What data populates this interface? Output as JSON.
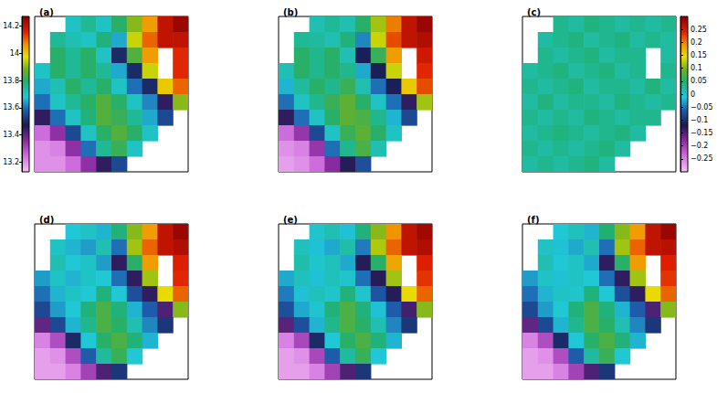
{
  "chart_data": [
    {
      "type": "heatmap",
      "title": "(a)",
      "tick_labels": false,
      "color_range": [
        13.13,
        14.27
      ],
      "colorbar_ticks": [
        13.2,
        13.4,
        13.6,
        13.8,
        14,
        14.2
      ],
      "cells": [
        [
          null,
          null,
          13.7,
          13.75,
          13.7,
          13.8,
          13.9,
          14.05,
          14.2,
          14.25
        ],
        [
          null,
          13.75,
          13.72,
          13.7,
          13.78,
          13.65,
          13.95,
          14.1,
          14.2,
          14.2
        ],
        [
          null,
          13.8,
          13.75,
          13.8,
          13.7,
          13.5,
          13.85,
          14.05,
          null,
          14.15
        ],
        [
          13.7,
          13.8,
          13.75,
          13.8,
          13.75,
          13.65,
          13.5,
          13.95,
          null,
          14.15
        ],
        [
          13.65,
          13.72,
          13.8,
          13.75,
          13.8,
          13.7,
          13.6,
          13.5,
          14.0,
          14.1
        ],
        [
          13.6,
          13.7,
          13.75,
          13.8,
          13.85,
          13.8,
          13.7,
          13.62,
          13.45,
          13.9
        ],
        [
          13.45,
          13.6,
          13.7,
          13.78,
          13.85,
          13.82,
          13.75,
          13.65,
          13.55,
          null
        ],
        [
          13.25,
          13.35,
          13.55,
          13.7,
          13.8,
          13.85,
          13.8,
          13.7,
          null,
          null
        ],
        [
          13.2,
          13.22,
          13.35,
          13.6,
          13.75,
          13.82,
          13.7,
          null,
          null,
          null
        ],
        [
          13.2,
          13.2,
          13.25,
          13.35,
          13.45,
          13.55,
          null,
          null,
          null,
          null
        ]
      ]
    },
    {
      "type": "heatmap",
      "title": "(b)",
      "tick_labels": false,
      "color_range": [
        13.13,
        14.27
      ],
      "cells": [
        [
          null,
          null,
          13.72,
          13.75,
          13.72,
          13.8,
          13.92,
          14.08,
          14.2,
          14.25
        ],
        [
          null,
          13.75,
          13.74,
          13.72,
          13.78,
          13.62,
          13.95,
          14.12,
          14.2,
          14.22
        ],
        [
          null,
          13.8,
          13.76,
          13.8,
          13.72,
          13.48,
          13.82,
          14.05,
          null,
          14.18
        ],
        [
          13.72,
          13.8,
          13.76,
          13.8,
          13.76,
          13.65,
          13.48,
          13.95,
          null,
          14.15
        ],
        [
          13.66,
          13.74,
          13.8,
          13.76,
          13.82,
          13.72,
          13.6,
          13.48,
          14.0,
          14.12
        ],
        [
          13.6,
          13.7,
          13.76,
          13.82,
          13.86,
          13.8,
          13.7,
          13.6,
          13.45,
          13.92
        ],
        [
          13.45,
          13.6,
          13.7,
          13.8,
          13.86,
          13.84,
          13.76,
          13.66,
          13.55,
          null
        ],
        [
          13.25,
          13.34,
          13.55,
          13.7,
          13.82,
          13.86,
          13.8,
          13.7,
          null,
          null
        ],
        [
          13.2,
          13.22,
          13.34,
          13.6,
          13.76,
          13.84,
          13.72,
          null,
          null,
          null
        ],
        [
          13.18,
          13.2,
          13.25,
          13.36,
          13.46,
          13.56,
          null,
          null,
          null,
          null
        ]
      ]
    },
    {
      "type": "heatmap",
      "title": "(c)",
      "tick_labels": false,
      "color_range": [
        -0.3,
        0.3
      ],
      "colorbar_ticks": [
        {
          "value": -0.25,
          "label": "−0.25"
        },
        {
          "value": -0.2,
          "label": "−0.2"
        },
        {
          "value": -0.15,
          "label": "−0.15"
        },
        {
          "value": -0.1,
          "label": "−0.1"
        },
        {
          "value": -0.05,
          "label": "−0.05"
        },
        0,
        0.05,
        0.1,
        0.15,
        0.2,
        0.25
      ],
      "cells": [
        [
          null,
          null,
          0.03,
          0.02,
          0.04,
          0.03,
          0.02,
          0.03,
          0.02,
          0.03
        ],
        [
          null,
          0.02,
          0.03,
          0.04,
          0.02,
          0.03,
          0.04,
          0.02,
          0.03,
          0.02
        ],
        [
          null,
          0.03,
          0.02,
          0.03,
          0.04,
          0.02,
          0.03,
          0.03,
          null,
          0.02
        ],
        [
          0.02,
          0.03,
          0.04,
          0.02,
          0.03,
          0.04,
          0.02,
          0.03,
          null,
          0.03
        ],
        [
          0.03,
          0.02,
          0.03,
          0.04,
          0.02,
          0.03,
          0.03,
          0.02,
          0.04,
          0.02
        ],
        [
          0.02,
          0.04,
          0.02,
          0.03,
          0.03,
          0.02,
          0.04,
          0.03,
          0.02,
          0.03
        ],
        [
          0.03,
          0.02,
          0.03,
          0.02,
          0.04,
          0.03,
          0.02,
          0.03,
          0.03,
          null
        ],
        [
          0.02,
          0.03,
          0.04,
          0.03,
          0.02,
          0.03,
          0.04,
          0.02,
          null,
          null
        ],
        [
          0.03,
          0.02,
          0.03,
          0.02,
          0.03,
          0.04,
          0.02,
          null,
          null,
          null
        ],
        [
          0.02,
          0.03,
          0.02,
          0.03,
          0.04,
          0.02,
          null,
          null,
          null,
          null
        ]
      ]
    },
    {
      "type": "heatmap",
      "title": "(d)",
      "tick_labels": false,
      "color_range": [
        13.13,
        14.27
      ],
      "cells": [
        [
          null,
          null,
          13.68,
          13.7,
          13.66,
          13.78,
          13.9,
          14.05,
          14.2,
          14.25
        ],
        [
          null,
          13.7,
          13.66,
          13.64,
          13.72,
          13.6,
          13.92,
          14.1,
          14.2,
          14.22
        ],
        [
          null,
          13.72,
          13.68,
          13.7,
          13.64,
          13.45,
          13.8,
          14.05,
          null,
          14.16
        ],
        [
          13.64,
          13.7,
          13.66,
          13.7,
          13.68,
          13.6,
          13.45,
          13.92,
          null,
          14.15
        ],
        [
          13.6,
          13.66,
          13.7,
          13.68,
          13.78,
          13.68,
          13.56,
          13.45,
          13.98,
          14.1
        ],
        [
          13.55,
          13.64,
          13.68,
          13.78,
          13.84,
          13.78,
          13.66,
          13.58,
          13.42,
          13.9
        ],
        [
          13.4,
          13.55,
          13.66,
          13.76,
          13.84,
          13.8,
          13.72,
          13.62,
          13.52,
          null
        ],
        [
          13.22,
          13.3,
          13.5,
          13.68,
          13.8,
          13.84,
          13.78,
          13.66,
          null,
          null
        ],
        [
          13.18,
          13.2,
          13.3,
          13.58,
          13.74,
          13.82,
          13.68,
          null,
          null,
          null
        ],
        [
          13.18,
          13.18,
          13.22,
          13.32,
          13.42,
          13.52,
          null,
          null,
          null,
          null
        ]
      ]
    },
    {
      "type": "heatmap",
      "title": "(e)",
      "tick_labels": false,
      "color_range": [
        13.13,
        14.27
      ],
      "cells": [
        [
          null,
          null,
          13.69,
          13.72,
          13.67,
          13.78,
          13.9,
          14.06,
          14.2,
          14.24
        ],
        [
          null,
          13.71,
          13.67,
          13.65,
          13.73,
          13.61,
          13.93,
          14.1,
          14.2,
          14.22
        ],
        [
          null,
          13.73,
          13.69,
          13.71,
          13.65,
          13.46,
          13.8,
          14.04,
          null,
          14.16
        ],
        [
          13.65,
          13.71,
          13.67,
          13.71,
          13.69,
          13.6,
          13.46,
          13.92,
          null,
          14.14
        ],
        [
          13.61,
          13.67,
          13.71,
          13.69,
          13.78,
          13.69,
          13.57,
          13.46,
          13.98,
          14.1
        ],
        [
          13.56,
          13.65,
          13.69,
          13.78,
          13.84,
          13.78,
          13.67,
          13.58,
          13.43,
          13.9
        ],
        [
          13.41,
          13.56,
          13.66,
          13.76,
          13.84,
          13.8,
          13.72,
          13.62,
          13.52,
          null
        ],
        [
          13.22,
          13.31,
          13.5,
          13.68,
          13.8,
          13.84,
          13.78,
          13.66,
          null,
          null
        ],
        [
          13.18,
          13.2,
          13.31,
          13.58,
          13.74,
          13.82,
          13.68,
          null,
          null,
          null
        ],
        [
          13.18,
          13.18,
          13.22,
          13.32,
          13.42,
          13.52,
          null,
          null,
          null,
          null
        ]
      ]
    },
    {
      "type": "heatmap",
      "title": "(f)",
      "tick_labels": false,
      "color_range": [
        13.13,
        14.27
      ],
      "cells": [
        [
          null,
          null,
          13.68,
          13.71,
          13.66,
          13.79,
          13.9,
          14.05,
          14.2,
          14.25
        ],
        [
          null,
          13.7,
          13.67,
          13.65,
          13.72,
          13.6,
          13.92,
          14.1,
          14.2,
          14.21
        ],
        [
          null,
          13.72,
          13.68,
          13.7,
          13.65,
          13.45,
          13.8,
          14.05,
          null,
          14.16
        ],
        [
          13.64,
          13.7,
          13.67,
          13.7,
          13.68,
          13.6,
          13.45,
          13.92,
          null,
          14.14
        ],
        [
          13.6,
          13.66,
          13.7,
          13.69,
          13.78,
          13.68,
          13.56,
          13.45,
          13.98,
          14.1
        ],
        [
          13.55,
          13.64,
          13.68,
          13.78,
          13.84,
          13.78,
          13.66,
          13.58,
          13.42,
          13.9
        ],
        [
          13.4,
          13.55,
          13.66,
          13.76,
          13.84,
          13.8,
          13.72,
          13.62,
          13.52,
          null
        ],
        [
          13.22,
          13.3,
          13.5,
          13.68,
          13.8,
          13.84,
          13.78,
          13.66,
          null,
          null
        ],
        [
          13.18,
          13.2,
          13.3,
          13.58,
          13.74,
          13.82,
          13.68,
          null,
          null,
          null
        ],
        [
          13.18,
          13.18,
          13.22,
          13.32,
          13.42,
          13.52,
          null,
          null,
          null,
          null
        ]
      ]
    }
  ]
}
